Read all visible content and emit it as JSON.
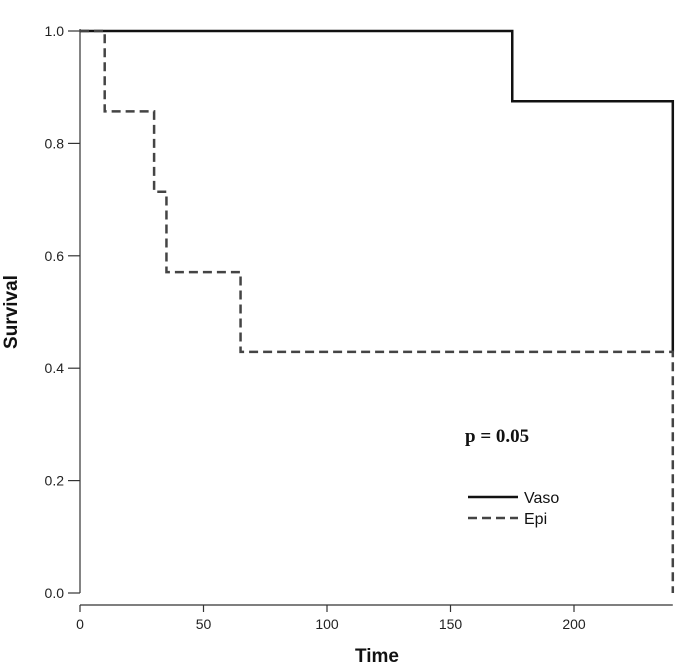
{
  "chart_data": {
    "type": "line",
    "subtype": "kaplan-meier step",
    "title": "",
    "xlabel": "Time",
    "ylabel": "Survival",
    "xlim": [
      0,
      240
    ],
    "ylim": [
      0,
      1
    ],
    "xticks": [
      0,
      50,
      100,
      150,
      200
    ],
    "yticks": [
      0.0,
      0.2,
      0.4,
      0.6,
      0.8,
      1.0
    ],
    "ytick_labels": [
      "0.0",
      "0.2",
      "0.4",
      "0.6",
      "0.8",
      "1.0"
    ],
    "annotation": "p = 0.05",
    "legend_position": "lower-right",
    "series": [
      {
        "name": "Vaso",
        "style": "solid",
        "color": "#111111",
        "x": [
          0,
          175,
          240,
          240
        ],
        "y": [
          1.0,
          0.875,
          0.875,
          0.429
        ]
      },
      {
        "name": "Epi",
        "style": "dashed",
        "color": "#444444",
        "x": [
          0,
          10,
          30,
          35,
          65,
          240,
          240
        ],
        "y": [
          1.0,
          0.857,
          0.714,
          0.571,
          0.429,
          0.429,
          0.0
        ]
      }
    ]
  }
}
